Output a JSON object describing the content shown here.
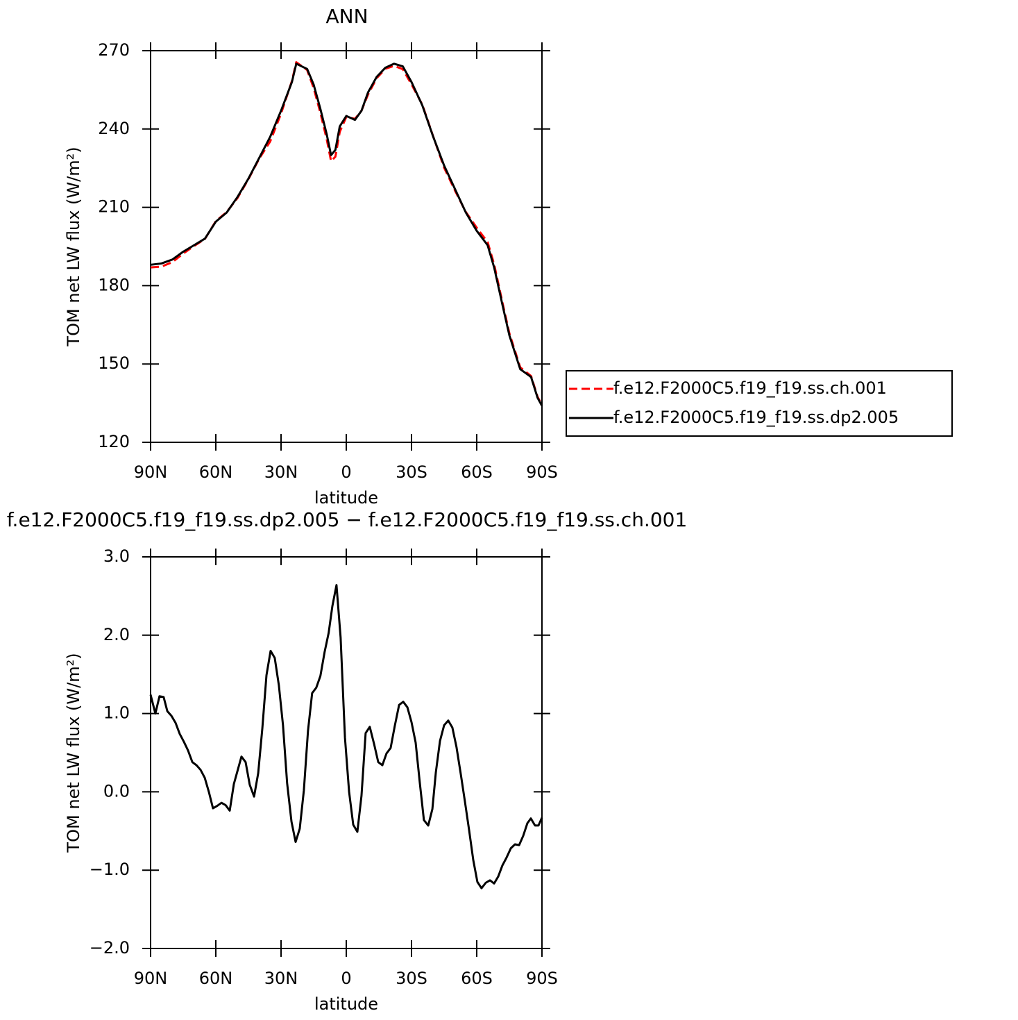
{
  "chart_data": [
    {
      "type": "line",
      "title": "ANN",
      "xlabel": "latitude",
      "ylabel": "TOM net LW flux (W/m²)",
      "x": [
        90,
        85,
        80,
        75,
        70,
        65,
        60,
        55,
        50,
        45,
        40,
        35,
        30,
        25,
        23,
        18,
        15,
        12,
        9,
        7,
        5,
        3,
        0,
        -4,
        -7,
        -10,
        -14,
        -18,
        -22,
        -26,
        -30,
        -35,
        -40,
        -45,
        -50,
        -55,
        -60,
        -65,
        -68,
        -72,
        -75,
        -80,
        -85,
        -88,
        -90
      ],
      "series": [
        {
          "name": "f.e12.F2000C5.f19_f19.ss.ch.001",
          "color": "#ff0000",
          "dashed": true,
          "values": [
            187,
            187.3,
            189,
            192.3,
            195.2,
            197.9,
            204.7,
            208.2,
            213.6,
            220.8,
            228.7,
            235.2,
            245.9,
            258.4,
            265.6,
            262.6,
            255.7,
            246.5,
            236.1,
            227.7,
            229.4,
            238.9,
            244.6,
            243.9,
            247,
            253.2,
            259.5,
            263.1,
            264.2,
            262.9,
            257.1,
            249.3,
            237.1,
            225.2,
            216.4,
            208.2,
            202.2,
            196.7,
            188.2,
            172.9,
            161.8,
            148.7,
            145.4,
            137.4,
            134.3
          ]
        },
        {
          "name": "f.e12.F2000C5.f19_f19.ss.dp2.005",
          "color": "#000000",
          "dashed": false,
          "values": [
            188,
            188.5,
            190,
            193,
            195.5,
            198,
            204.5,
            208,
            214,
            221,
            229,
            237,
            247,
            258,
            265,
            263,
            257,
            248,
            238,
            230,
            232,
            241,
            245,
            243.5,
            247,
            254,
            260,
            263.5,
            265,
            264,
            258,
            249,
            237,
            226,
            217,
            208,
            201,
            195.5,
            187,
            172,
            161,
            148,
            145,
            137,
            134
          ]
        }
      ],
      "xlim": [
        90,
        -90
      ],
      "xticks": [
        {
          "value": 90,
          "label": "90N"
        },
        {
          "value": 60,
          "label": "60N"
        },
        {
          "value": 30,
          "label": "30N"
        },
        0,
        {
          "value": -30,
          "label": "30S"
        },
        {
          "value": -60,
          "label": "60S"
        },
        {
          "value": -90,
          "label": "90S"
        }
      ],
      "ylim": [
        120,
        270
      ],
      "yticks": [
        120,
        150,
        180,
        210,
        240,
        270
      ],
      "legend": "right"
    },
    {
      "type": "line",
      "title": "f.e12.F2000C5.f19_f19.ss.dp2.005 − f.e12.F2000C5.f19_f19.ss.ch.001",
      "xlabel": "latitude",
      "ylabel": "TOM net LW flux (W/m²)",
      "x": [
        90,
        87.8,
        85.9,
        84,
        82.3,
        80.4,
        78.5,
        76.6,
        74.7,
        72.8,
        70.8,
        68.9,
        67,
        65.1,
        63.2,
        61.3,
        59.4,
        57.4,
        55.5,
        53.6,
        51.7,
        49.8,
        48.2,
        46.3,
        44.4,
        42.4,
        40.5,
        38.6,
        36.7,
        34.8,
        32.9,
        31,
        29.1,
        27.2,
        25.2,
        23.3,
        21.4,
        19.5,
        17.6,
        15.7,
        13.8,
        11.9,
        10,
        8.1,
        6.4,
        4.5,
        2.6,
        0.6,
        -1.3,
        -3.2,
        -5.1,
        -7,
        -8.9,
        -10.8,
        -12.8,
        -14.7,
        -16.6,
        -18.5,
        -20.4,
        -22.3,
        -24.3,
        -26.2,
        -28.1,
        -30,
        -31.9,
        -33.8,
        -35.7,
        -37.7,
        -39.6,
        -41.2,
        -43.1,
        -45,
        -46.9,
        -48.8,
        -50.7,
        -52.7,
        -54.6,
        -56.5,
        -58.4,
        -60.3,
        -62.2,
        -64.2,
        -66.1,
        -68,
        -69.9,
        -71.8,
        -73.7,
        -75.7,
        -77.6,
        -79.5,
        -81.4,
        -83.3,
        -84.9,
        -86.8,
        -88.4,
        -90
      ],
      "series": [
        {
          "color": "#000000",
          "dashed": false,
          "values": [
            1.24,
            1.0,
            1.22,
            1.21,
            1.03,
            0.97,
            0.88,
            0.74,
            0.64,
            0.53,
            0.38,
            0.34,
            0.28,
            0.18,
            0.0,
            -0.21,
            -0.18,
            -0.14,
            -0.17,
            -0.24,
            0.1,
            0.29,
            0.45,
            0.38,
            0.09,
            -0.06,
            0.24,
            0.81,
            1.49,
            1.8,
            1.71,
            1.36,
            0.85,
            0.11,
            -0.38,
            -0.64,
            -0.47,
            0.02,
            0.78,
            1.26,
            1.33,
            1.48,
            1.78,
            2.03,
            2.37,
            2.64,
            1.97,
            0.69,
            0.0,
            -0.42,
            -0.51,
            -0.05,
            0.75,
            0.83,
            0.61,
            0.38,
            0.34,
            0.49,
            0.56,
            0.84,
            1.11,
            1.15,
            1.08,
            0.89,
            0.63,
            0.12,
            -0.36,
            -0.43,
            -0.22,
            0.25,
            0.65,
            0.85,
            0.91,
            0.82,
            0.57,
            0.22,
            -0.13,
            -0.49,
            -0.87,
            -1.15,
            -1.23,
            -1.16,
            -1.13,
            -1.17,
            -1.08,
            -0.94,
            -0.84,
            -0.72,
            -0.67,
            -0.68,
            -0.56,
            -0.4,
            -0.34,
            -0.43,
            -0.43,
            -0.33
          ]
        }
      ],
      "xlim": [
        90,
        -90
      ],
      "xticks": [
        {
          "value": 90,
          "label": "90N"
        },
        {
          "value": 60,
          "label": "60N"
        },
        {
          "value": 30,
          "label": "30N"
        },
        0,
        {
          "value": -30,
          "label": "30S"
        },
        {
          "value": -60,
          "label": "60S"
        },
        {
          "value": -90,
          "label": "90S"
        }
      ],
      "ylim": [
        -2,
        3
      ],
      "yticks": [
        {
          "value": -2,
          "label": "−2.0"
        },
        {
          "value": -1,
          "label": "−1.0"
        },
        {
          "value": 0,
          "label": "0.0"
        },
        {
          "value": 1,
          "label": "1.0"
        },
        {
          "value": 2,
          "label": "2.0"
        },
        {
          "value": 3,
          "label": "3.0"
        }
      ]
    }
  ]
}
